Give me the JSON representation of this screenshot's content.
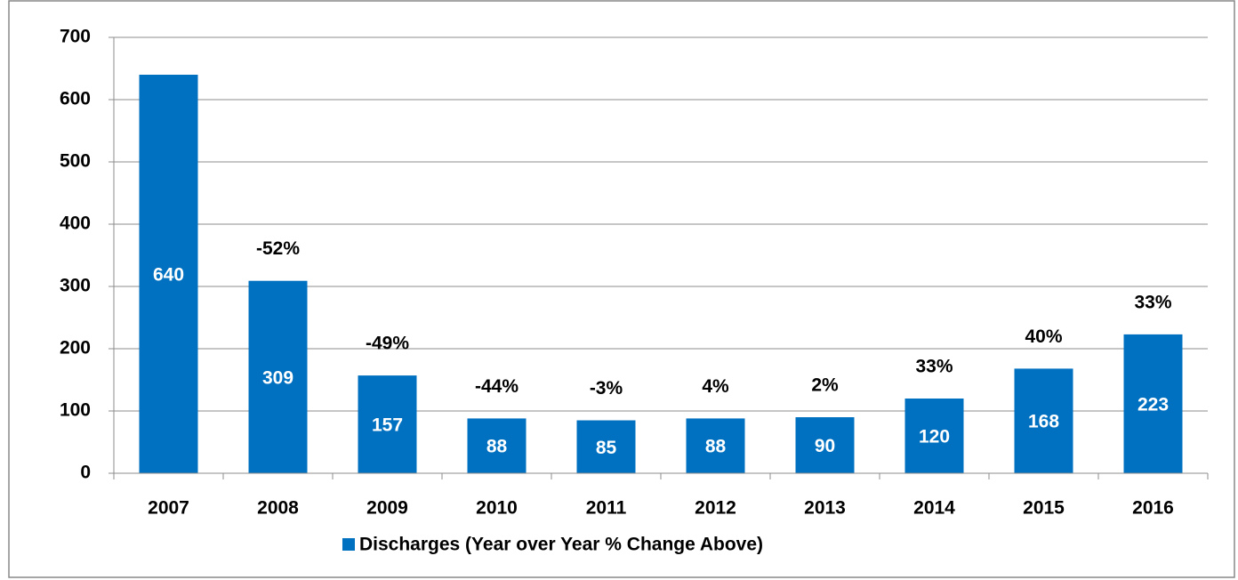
{
  "chart_data": {
    "type": "bar",
    "categories": [
      "2007",
      "2008",
      "2009",
      "2010",
      "2011",
      "2012",
      "2013",
      "2014",
      "2015",
      "2016"
    ],
    "series": [
      {
        "name": "Discharges (Year over Year % Change Above)",
        "color": "#0070c0",
        "values": [
          640,
          309,
          157,
          88,
          85,
          88,
          90,
          120,
          168,
          223
        ]
      }
    ],
    "change_labels": [
      null,
      "-52%",
      "-49%",
      "-44%",
      "-3%",
      "4%",
      "2%",
      "33%",
      "40%",
      "33%"
    ],
    "ylim": [
      0,
      700
    ],
    "yticks": [
      0,
      100,
      200,
      300,
      400,
      500,
      600,
      700
    ],
    "grid": true,
    "legend": "bottom"
  }
}
